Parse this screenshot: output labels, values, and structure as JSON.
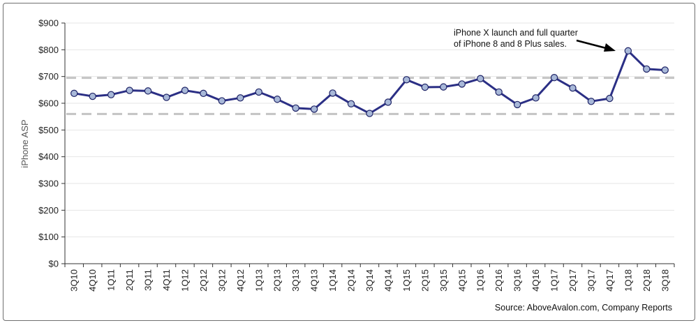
{
  "chart_data": {
    "type": "line",
    "title": "",
    "xlabel": "",
    "ylabel": "iPhone ASP",
    "ylim": [
      0,
      900
    ],
    "yticks": [
      "$0",
      "$100",
      "$200",
      "$300",
      "$400",
      "$500",
      "$600",
      "$700",
      "$800",
      "$900"
    ],
    "grid": true,
    "categories": [
      "3Q10",
      "4Q10",
      "1Q11",
      "2Q11",
      "3Q11",
      "4Q11",
      "1Q12",
      "2Q12",
      "3Q12",
      "4Q12",
      "1Q13",
      "2Q13",
      "3Q13",
      "4Q13",
      "1Q14",
      "2Q14",
      "3Q14",
      "4Q14",
      "1Q15",
      "2Q15",
      "3Q15",
      "4Q15",
      "1Q16",
      "2Q16",
      "3Q16",
      "4Q16",
      "1Q17",
      "2Q17",
      "3Q17",
      "4Q17",
      "1Q18",
      "2Q18",
      "3Q18"
    ],
    "series": [
      {
        "values": [
          637,
          626,
          632,
          648,
          646,
          622,
          648,
          637,
          609,
          620,
          642,
          615,
          582,
          578,
          638,
          598,
          562,
          604,
          688,
          660,
          661,
          672,
          692,
          642,
          595,
          620,
          696,
          657,
          607,
          618,
          796,
          728,
          724
        ],
        "color": "#2b2f85",
        "marker_fill": "#a8b8d8"
      }
    ],
    "reference_lines": [
      {
        "value": 695,
        "style": "dashed",
        "color": "#c4c4c4"
      },
      {
        "value": 560,
        "style": "dashed",
        "color": "#c4c4c4"
      }
    ],
    "annotation": {
      "lines": [
        "iPhone X launch and full quarter",
        "of iPhone 8 and 8  Plus sales."
      ],
      "points_to": "1Q18"
    },
    "source": "Source: AboveAvalon.com, Company Reports"
  }
}
